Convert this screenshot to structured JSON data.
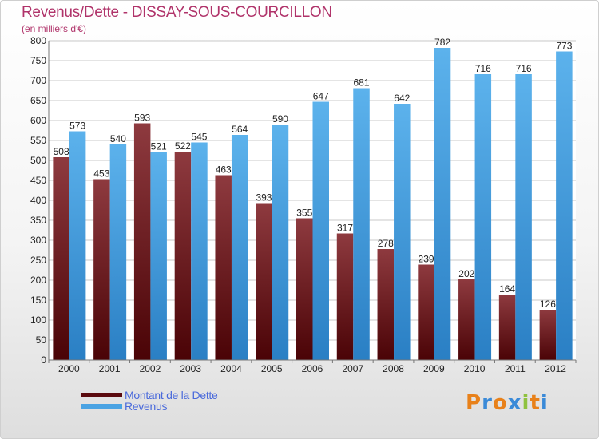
{
  "header": {
    "title": "Revenus/Dette - DISSAY-SOUS-COURCILLON",
    "subtitle": "(en milliers d'€)"
  },
  "legend": {
    "debt_label": "Montant de la Dette",
    "revenue_label": "Revenus"
  },
  "brand": {
    "letters": [
      "P",
      "r",
      "o",
      "x",
      "i",
      "t",
      "i"
    ],
    "colors": [
      "#e8811a",
      "#3a8ad8",
      "#e8811a",
      "#3a8ad8",
      "#8fc23f",
      "#e8811a",
      "#3a8ad8"
    ]
  },
  "colors": {
    "debt_top": "#8e3a3f",
    "debt_bottom": "#4a0306",
    "revenue_top": "#5cb2ec",
    "revenue_bottom": "#2a7fc4",
    "title": "#b0336a",
    "legend_text": "#4a6adb"
  },
  "chart_data": {
    "type": "bar",
    "title": "Revenus/Dette - DISSAY-SOUS-COURCILLON",
    "subtitle": "(en milliers d'€)",
    "categories": [
      "2000",
      "2001",
      "2002",
      "2003",
      "2004",
      "2005",
      "2006",
      "2007",
      "2008",
      "2009",
      "2010",
      "2011",
      "2012"
    ],
    "series": [
      {
        "name": "Montant de la Dette",
        "values": [
          508,
          453,
          593,
          522,
          463,
          393,
          355,
          317,
          278,
          239,
          202,
          164,
          126
        ]
      },
      {
        "name": "Revenus",
        "values": [
          573,
          540,
          521,
          545,
          564,
          590,
          647,
          681,
          642,
          782,
          716,
          716,
          773
        ]
      }
    ],
    "ylim": [
      0,
      800
    ],
    "yticks": [
      0,
      50,
      100,
      150,
      200,
      250,
      300,
      350,
      400,
      450,
      500,
      550,
      600,
      650,
      700,
      750,
      800
    ],
    "grid": true,
    "legend_position": "bottom-left"
  }
}
